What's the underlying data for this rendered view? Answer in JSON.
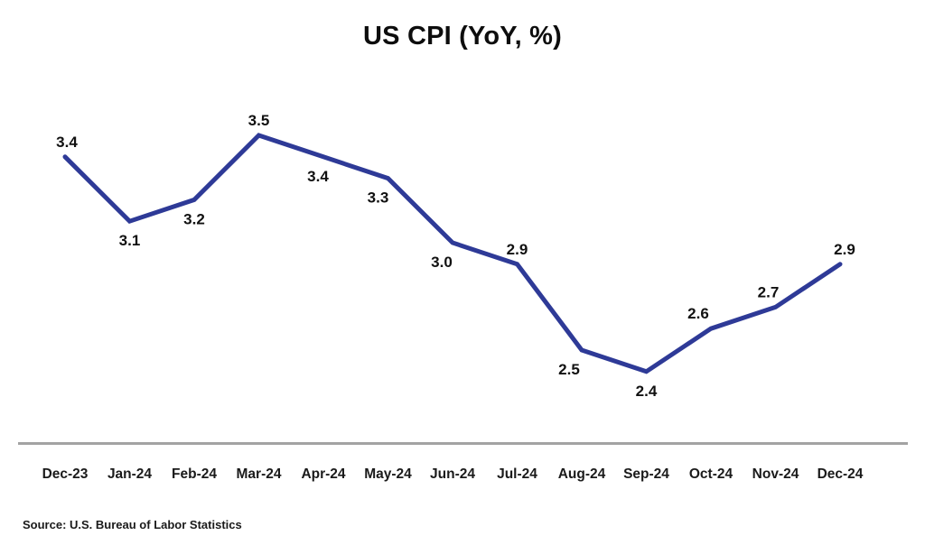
{
  "page": {
    "title": "US CPI (YoY, %)",
    "source": "Source: U.S. Bureau of Labor Statistics"
  },
  "chart_data": {
    "type": "line",
    "title": "US CPI (YoY, %)",
    "categories": [
      "Dec-23",
      "Jan-24",
      "Feb-24",
      "Mar-24",
      "Apr-24",
      "May-24",
      "Jun-24",
      "Jul-24",
      "Aug-24",
      "Sep-24",
      "Oct-24",
      "Nov-24",
      "Dec-24"
    ],
    "series": [
      {
        "name": "US CPI (YoY, %)",
        "values": [
          3.4,
          3.1,
          3.2,
          3.5,
          3.4,
          3.3,
          3.0,
          2.9,
          2.5,
          2.4,
          2.6,
          2.7,
          2.9
        ]
      }
    ],
    "value_label_positions": [
      "above",
      "below",
      "below",
      "above",
      "below",
      "below",
      "below",
      "above",
      "below",
      "below",
      "above",
      "above",
      "above"
    ],
    "ylim": [
      2.4,
      3.5
    ],
    "xlabel": "",
    "ylabel": "",
    "grid": false,
    "legend": "none",
    "y_axis_visible": false,
    "x_axis_visible": true,
    "line_color": "#2e3a97",
    "axis_line_color": "#a3a3a3",
    "label_color": "#111111",
    "source": "Source: U.S. Bureau of Labor Statistics"
  }
}
